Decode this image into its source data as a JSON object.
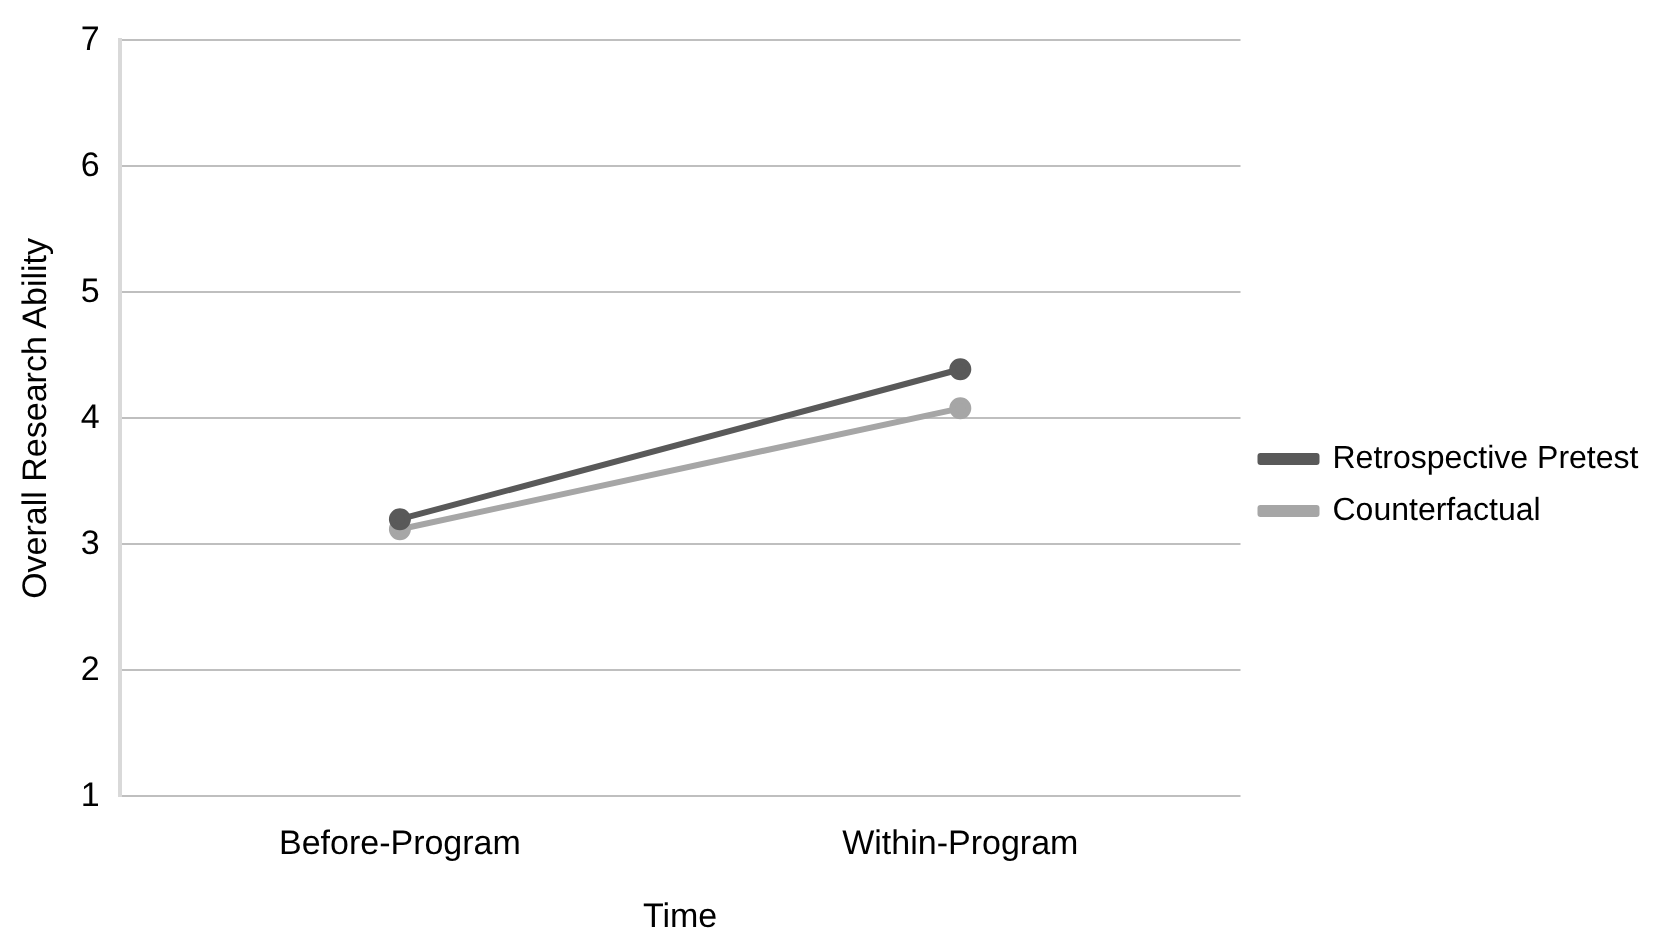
{
  "chart_data": {
    "type": "line",
    "xlabel": "Time",
    "ylabel": "Overall Research Ability",
    "categories": [
      "Before-Program",
      "Within-Program"
    ],
    "series": [
      {
        "name": "Retrospective Pretest",
        "color": "#595959",
        "values": [
          3.2,
          4.39
        ]
      },
      {
        "name": "Counterfactual",
        "color": "#a6a6a6",
        "values": [
          3.12,
          4.08
        ]
      }
    ],
    "ylim": [
      1,
      7
    ],
    "yticks": [
      1,
      2,
      3,
      4,
      5,
      6,
      7
    ],
    "grid": "y",
    "legend": "right",
    "marker": "circle",
    "line_style": "solid"
  }
}
